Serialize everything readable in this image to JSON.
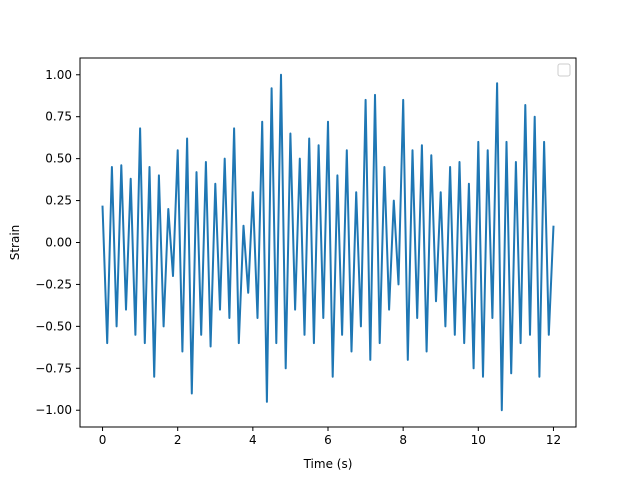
{
  "colors": {
    "line": "#1f77b4",
    "axes": "#000000",
    "background": "#ffffff",
    "legend_border": "#cccccc"
  },
  "chart_data": {
    "type": "line",
    "title": "",
    "xlabel": "Time (s)",
    "ylabel": "Strain",
    "xlim": [
      -0.6,
      12.6
    ],
    "ylim": [
      -1.1,
      1.1
    ],
    "xticks": [
      0,
      2,
      4,
      6,
      8,
      10,
      12
    ],
    "xtick_labels": [
      "0",
      "2",
      "4",
      "6",
      "8",
      "10",
      "12"
    ],
    "yticks": [
      1.0,
      0.75,
      0.5,
      0.25,
      0.0,
      -0.25,
      -0.5,
      -0.75,
      -1.0
    ],
    "ytick_labels": [
      "1.00",
      "0.75",
      "0.50",
      "0.25",
      "0.00",
      "−0.25",
      "−0.50",
      "−0.75",
      "−1.00"
    ],
    "grid": false,
    "legend": {
      "placement": "top-right",
      "entries": []
    },
    "series": [
      {
        "x": [
          0,
          0.125,
          0.25,
          0.375,
          0.5,
          0.625,
          0.75,
          0.875,
          1,
          1.125,
          1.25,
          1.375,
          1.5,
          1.625,
          1.75,
          1.875,
          2,
          2.125,
          2.25,
          2.375,
          2.5,
          2.625,
          2.75,
          2.875,
          3,
          3.125,
          3.25,
          3.375,
          3.5,
          3.625,
          3.75,
          3.875,
          4,
          4.125,
          4.25,
          4.375,
          4.5,
          4.625,
          4.75,
          4.875,
          5,
          5.125,
          5.25,
          5.375,
          5.5,
          5.625,
          5.75,
          5.875,
          6,
          6.125,
          6.25,
          6.375,
          6.5,
          6.625,
          6.75,
          6.875,
          7,
          7.125,
          7.25,
          7.375,
          7.5,
          7.625,
          7.75,
          7.875,
          8,
          8.125,
          8.25,
          8.375,
          8.5,
          8.625,
          8.75,
          8.875,
          9,
          9.125,
          9.25,
          9.375,
          9.5,
          9.625,
          9.75,
          9.875,
          10,
          10.125,
          10.25,
          10.375,
          10.5,
          10.625,
          10.75,
          10.875,
          11,
          11.125,
          11.25,
          11.375,
          11.5,
          11.625,
          11.75,
          11.875,
          12
        ],
        "y": [
          0.22,
          -0.6,
          0.45,
          -0.5,
          0.46,
          -0.4,
          0.38,
          -0.55,
          0.68,
          -0.6,
          0.45,
          -0.8,
          0.4,
          -0.5,
          0.2,
          -0.2,
          0.55,
          -0.65,
          0.62,
          -0.9,
          0.42,
          -0.55,
          0.48,
          -0.62,
          0.35,
          -0.4,
          0.5,
          -0.45,
          0.68,
          -0.6,
          0.1,
          -0.3,
          0.3,
          -0.45,
          0.72,
          -0.95,
          0.92,
          -0.6,
          1.0,
          -0.75,
          0.65,
          -0.4,
          0.5,
          -0.55,
          0.62,
          -0.6,
          0.58,
          -0.45,
          0.72,
          -0.8,
          0.4,
          -0.55,
          0.55,
          -0.65,
          0.3,
          -0.5,
          0.85,
          -0.7,
          0.88,
          -0.6,
          0.45,
          -0.4,
          0.25,
          -0.25,
          0.85,
          -0.7,
          0.55,
          -0.45,
          0.58,
          -0.65,
          0.52,
          -0.35,
          0.3,
          -0.5,
          0.45,
          -0.55,
          0.48,
          -0.6,
          0.35,
          -0.75,
          0.6,
          -0.8,
          0.55,
          -0.45,
          0.95,
          -1.0,
          0.6,
          -0.78,
          0.48,
          -0.6,
          0.82,
          -0.55,
          0.75,
          -0.8,
          0.6,
          -0.55,
          0.1
        ]
      }
    ]
  }
}
